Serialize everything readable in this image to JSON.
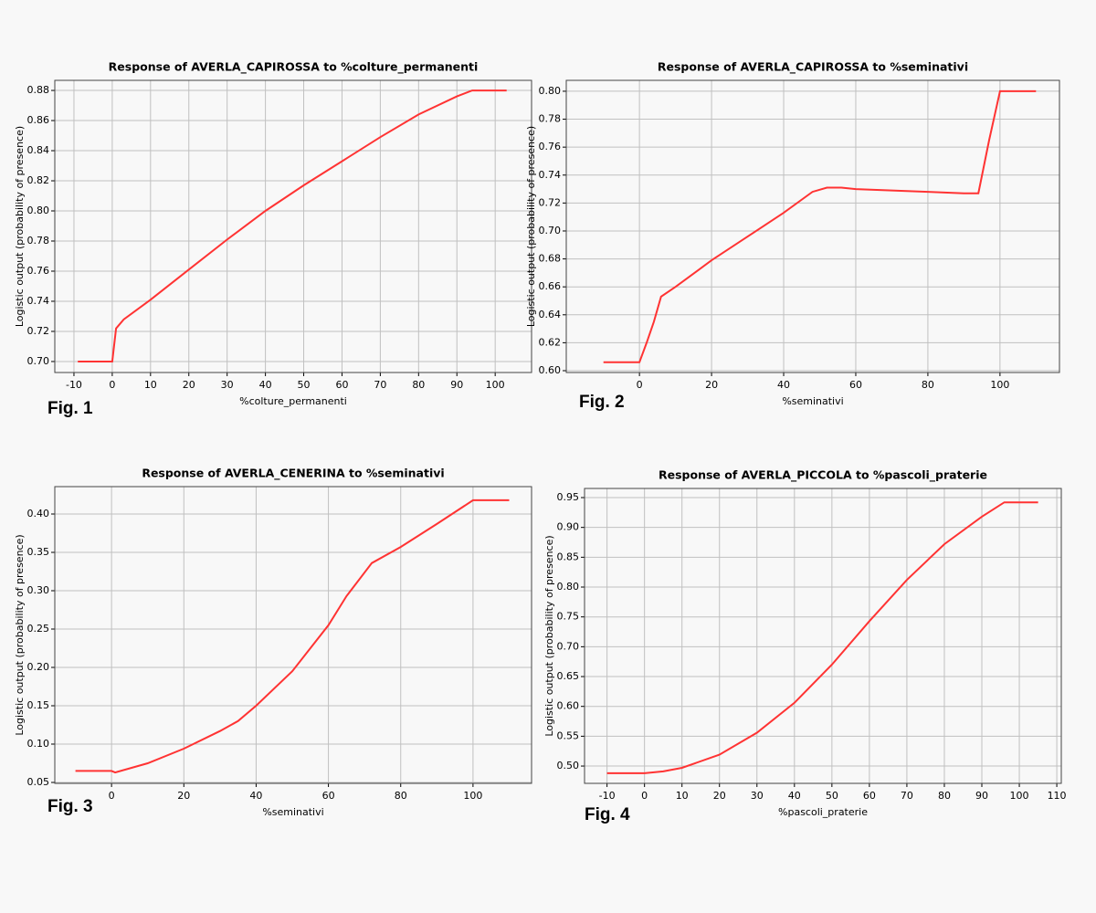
{
  "chart_data": [
    {
      "type": "line",
      "title": "Response of AVERLA_CAPIROSSA to %colture_permanenti",
      "xlabel": "%colture_permanenti",
      "ylabel": "Logistic output (probability of presence)",
      "fig_label": "Fig. 1",
      "x": [
        -9,
        0,
        1,
        3,
        10,
        20,
        30,
        40,
        50,
        60,
        70,
        80,
        90,
        94,
        103
      ],
      "series": [
        {
          "color": "#ff3333",
          "values": [
            0.7,
            0.7,
            0.722,
            0.728,
            0.741,
            0.761,
            0.781,
            0.8,
            0.817,
            0.833,
            0.849,
            0.864,
            0.876,
            0.88,
            0.88
          ]
        }
      ],
      "xlim": [
        -15,
        109.5
      ],
      "ylim": [
        0.6927,
        0.8867
      ],
      "xticks": [
        -10,
        0,
        10,
        20,
        30,
        40,
        50,
        60,
        70,
        80,
        90,
        100
      ],
      "yticks": [
        {
          "value": 0.7,
          "label": "0.70"
        },
        {
          "value": 0.72,
          "label": "0.72"
        },
        {
          "value": 0.74,
          "label": "0.74"
        },
        {
          "value": 0.76,
          "label": "0.76"
        },
        {
          "value": 0.78,
          "label": "0.78"
        },
        {
          "value": 0.8,
          "label": "0.80"
        },
        {
          "value": 0.82,
          "label": "0.82"
        },
        {
          "value": 0.84,
          "label": "0.84"
        },
        {
          "value": 0.86,
          "label": "0.86"
        },
        {
          "value": 0.88,
          "label": "0.88"
        }
      ],
      "grid": true
    },
    {
      "type": "line",
      "title": "Response of AVERLA_CAPIROSSA to %seminativi",
      "xlabel": "%seminativi",
      "ylabel": "Logistic output (probability of presence)",
      "fig_label": "Fig. 2",
      "x": [
        -10,
        0,
        2,
        4,
        6,
        10,
        20,
        30,
        40,
        48,
        52,
        56,
        60,
        70,
        80,
        90,
        94,
        97,
        100,
        110
      ],
      "series": [
        {
          "color": "#ff3333",
          "values": [
            0.606,
            0.606,
            0.62,
            0.635,
            0.653,
            0.66,
            0.679,
            0.696,
            0.713,
            0.728,
            0.731,
            0.731,
            0.73,
            0.729,
            0.728,
            0.727,
            0.727,
            0.765,
            0.8,
            0.8
          ]
        }
      ],
      "xlim": [
        -20.3,
        116.5
      ],
      "ylim": [
        0.5987,
        0.8078
      ],
      "xticks": [
        0,
        20,
        40,
        60,
        80,
        100
      ],
      "yticks": [
        {
          "value": 0.6,
          "label": "0.60"
        },
        {
          "value": 0.62,
          "label": "0.62"
        },
        {
          "value": 0.64,
          "label": "0.64"
        },
        {
          "value": 0.66,
          "label": "0.66"
        },
        {
          "value": 0.68,
          "label": "0.68"
        },
        {
          "value": 0.7,
          "label": "0.70"
        },
        {
          "value": 0.72,
          "label": "0.72"
        },
        {
          "value": 0.74,
          "label": "0.74"
        },
        {
          "value": 0.76,
          "label": "0.76"
        },
        {
          "value": 0.78,
          "label": "0.78"
        },
        {
          "value": 0.8,
          "label": "0.80"
        }
      ],
      "grid": true
    },
    {
      "type": "line",
      "title": "Response of AVERLA_CENERINA to %seminativi",
      "xlabel": "%seminativi",
      "ylabel": "Logistic output (probability of presence)",
      "fig_label": "Fig. 3",
      "x": [
        -10,
        0,
        1,
        10,
        20,
        30,
        35,
        40,
        50,
        60,
        65,
        72,
        80,
        90,
        100,
        110
      ],
      "series": [
        {
          "color": "#ff3333",
          "values": [
            0.065,
            0.065,
            0.063,
            0.075,
            0.094,
            0.117,
            0.13,
            0.15,
            0.195,
            0.255,
            0.293,
            0.336,
            0.357,
            0.387,
            0.418,
            0.418
          ]
        }
      ],
      "xlim": [
        -15.7,
        116.2
      ],
      "ylim": [
        0.0488,
        0.4357
      ],
      "xticks": [
        0,
        20,
        40,
        60,
        80,
        100
      ],
      "yticks": [
        0.05,
        {
          "value": 0.1,
          "label": "0.10"
        },
        0.15,
        {
          "value": 0.2,
          "label": "0.20"
        },
        0.25,
        {
          "value": 0.3,
          "label": "0.30"
        },
        0.35,
        {
          "value": 0.4,
          "label": "0.40"
        }
      ],
      "grid": true
    },
    {
      "type": "line",
      "title": "Response of AVERLA_PICCOLA to %pascoli_praterie",
      "xlabel": "%pascoli_praterie",
      "ylabel": "Logistic output (probability of presence)",
      "fig_label": "Fig. 4",
      "x": [
        -10,
        0,
        5,
        10,
        20,
        30,
        40,
        50,
        60,
        70,
        80,
        90,
        96,
        105
      ],
      "series": [
        {
          "color": "#ff3333",
          "values": [
            0.488,
            0.488,
            0.491,
            0.497,
            0.519,
            0.556,
            0.606,
            0.67,
            0.743,
            0.812,
            0.872,
            0.918,
            0.942,
            0.942
          ]
        }
      ],
      "xlim": [
        -16,
        111.2
      ],
      "ylim": [
        0.471,
        0.9653
      ],
      "xticks": [
        -10,
        0,
        10,
        20,
        30,
        40,
        50,
        60,
        70,
        80,
        90,
        100,
        110
      ],
      "yticks": [
        {
          "value": 0.5,
          "label": "0.50"
        },
        0.55,
        {
          "value": 0.6,
          "label": "0.60"
        },
        0.65,
        {
          "value": 0.7,
          "label": "0.70"
        },
        0.75,
        {
          "value": 0.8,
          "label": "0.80"
        },
        0.85,
        {
          "value": 0.9,
          "label": "0.90"
        },
        0.95
      ],
      "grid": true
    }
  ]
}
